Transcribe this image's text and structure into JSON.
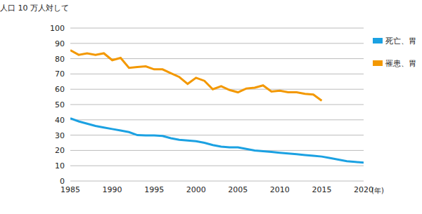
{
  "chart_data": {
    "type": "line",
    "y_label": "人口 10 万人対して",
    "x_label": "(年)",
    "x": [
      1985,
      1986,
      1987,
      1988,
      1989,
      1990,
      1991,
      1992,
      1993,
      1994,
      1995,
      1996,
      1997,
      1998,
      1999,
      2000,
      2001,
      2002,
      2003,
      2004,
      2005,
      2006,
      2007,
      2008,
      2009,
      2010,
      2011,
      2012,
      2013,
      2014,
      2015,
      2016,
      2017,
      2018,
      2019,
      2020
    ],
    "series": [
      {
        "name": "死亡、胃",
        "color": "#1ba1e2",
        "values": [
          41,
          39,
          37.5,
          36,
          35,
          34,
          33,
          32,
          30,
          29.8,
          29.8,
          29.5,
          28,
          27,
          26.5,
          26,
          25,
          23.5,
          22.5,
          22,
          22,
          21,
          20,
          19.5,
          19,
          18.5,
          18,
          17.5,
          17,
          16.5,
          16,
          15,
          14,
          13,
          12.5,
          12
        ]
      },
      {
        "name": "罹患、胃",
        "color": "#f39800",
        "values": [
          85.5,
          82.5,
          83.5,
          82.5,
          83.5,
          79,
          80.5,
          74,
          74.5,
          75,
          73,
          73,
          70.5,
          68,
          63.5,
          67.5,
          65.5,
          60,
          62,
          59.5,
          58,
          60.5,
          61,
          62.5,
          58.5,
          59,
          58,
          58,
          57,
          56.5,
          52.5,
          null,
          null,
          null,
          null,
          null
        ]
      }
    ],
    "xlim": [
      1985,
      2020
    ],
    "xticks": [
      1985,
      1990,
      1995,
      2000,
      2005,
      2010,
      2015,
      2020
    ],
    "ylim": [
      0,
      100
    ],
    "yticks": [
      0,
      10,
      20,
      30,
      40,
      50,
      60,
      70,
      80,
      90,
      100
    ],
    "grid": true,
    "legend": "right"
  }
}
